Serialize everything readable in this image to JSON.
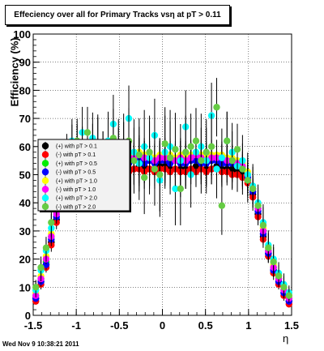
{
  "header": {
    "title": "Effeciency over all for Primary Tracks vsη at pT > 0.11",
    "timestamp": "Wed Nov  9 10:38:21 2011"
  },
  "chart_data": {
    "type": "scatter",
    "xlabel": "η",
    "ylabel": "Efficiency (%)",
    "xlim": [
      -1.5,
      1.5
    ],
    "ylim": [
      0,
      100
    ],
    "x_ticks": [
      "-1.5",
      "-1",
      "-0.5",
      "0",
      "0.5",
      "1",
      "1.5"
    ],
    "y_ticks": [
      "0",
      "10",
      "20",
      "30",
      "40",
      "50",
      "60",
      "70",
      "80",
      "90",
      "100"
    ],
    "grid": true,
    "legend_position": "middle-left",
    "x": [
      -1.47,
      -1.41,
      -1.35,
      -1.29,
      -1.23,
      -1.17,
      -1.11,
      -1.05,
      -0.99,
      -0.93,
      -0.87,
      -0.81,
      -0.75,
      -0.69,
      -0.63,
      -0.57,
      -0.51,
      -0.45,
      -0.39,
      -0.33,
      -0.27,
      -0.21,
      -0.15,
      -0.09,
      -0.03,
      0.03,
      0.09,
      0.15,
      0.21,
      0.27,
      0.33,
      0.39,
      0.45,
      0.51,
      0.57,
      0.63,
      0.69,
      0.75,
      0.81,
      0.87,
      0.93,
      0.99,
      1.05,
      1.11,
      1.17,
      1.23,
      1.29,
      1.35,
      1.41,
      1.47
    ],
    "series": [
      {
        "name": "(+) with pT > 0.1",
        "color": "#000000",
        "values": [
          6,
          12,
          18,
          26,
          34,
          45,
          50,
          52,
          53,
          53,
          53,
          52,
          52,
          52,
          53,
          52,
          52,
          53,
          52,
          52,
          53,
          53,
          52,
          52,
          53,
          53,
          52,
          52,
          52,
          52,
          52,
          53,
          52,
          52,
          52,
          53,
          52,
          52,
          52,
          51,
          50,
          48,
          43,
          36,
          28,
          22,
          16,
          12,
          8,
          5
        ]
      },
      {
        "name": "(-) with pT > 0.1",
        "color": "#ff0000",
        "values": [
          5,
          11,
          17,
          25,
          33,
          44,
          49,
          51,
          52,
          52,
          52,
          51,
          51,
          52,
          52,
          51,
          51,
          52,
          51,
          52,
          52,
          51,
          52,
          51,
          52,
          52,
          51,
          52,
          51,
          51,
          52,
          51,
          52,
          51,
          52,
          52,
          51,
          51,
          50,
          50,
          49,
          47,
          42,
          35,
          27,
          21,
          15,
          11,
          7,
          4
        ]
      },
      {
        "name": "(+) with pT > 0.5",
        "color": "#00ee00",
        "values": [
          7,
          13,
          19,
          28,
          36,
          47,
          53,
          55,
          57,
          56,
          57,
          56,
          56,
          55,
          57,
          56,
          56,
          56,
          55,
          56,
          57,
          56,
          56,
          55,
          56,
          56,
          56,
          55,
          56,
          55,
          56,
          57,
          56,
          55,
          56,
          56,
          56,
          55,
          55,
          54,
          53,
          50,
          45,
          38,
          30,
          23,
          17,
          13,
          9,
          6
        ]
      },
      {
        "name": "(-) with pT > 0.5",
        "color": "#0000ff",
        "values": [
          6,
          12,
          18,
          27,
          35,
          46,
          52,
          54,
          55,
          55,
          55,
          54,
          55,
          54,
          55,
          55,
          54,
          55,
          54,
          55,
          55,
          54,
          55,
          54,
          55,
          55,
          54,
          55,
          54,
          54,
          55,
          55,
          54,
          54,
          55,
          55,
          54,
          54,
          54,
          53,
          52,
          49,
          44,
          37,
          29,
          22,
          16,
          12,
          8,
          5
        ]
      },
      {
        "name": "(+) with pT > 1.0",
        "color": "#ffff00",
        "values": [
          8,
          14,
          21,
          29,
          37,
          48,
          55,
          57,
          58,
          58,
          58,
          57,
          57,
          57,
          58,
          57,
          57,
          57,
          56,
          57,
          58,
          57,
          57,
          56,
          57,
          57,
          57,
          56,
          57,
          56,
          57,
          58,
          57,
          56,
          57,
          57,
          57,
          56,
          56,
          55,
          54,
          51,
          46,
          39,
          31,
          24,
          18,
          14,
          10,
          7
        ]
      },
      {
        "name": "(-) with pT > 1.0",
        "color": "#ff00ff",
        "values": [
          7,
          13,
          20,
          28,
          36,
          47,
          54,
          56,
          57,
          57,
          57,
          56,
          56,
          56,
          57,
          56,
          56,
          56,
          55,
          56,
          57,
          56,
          56,
          55,
          56,
          56,
          56,
          55,
          56,
          55,
          56,
          57,
          56,
          55,
          56,
          56,
          56,
          55,
          55,
          54,
          53,
          50,
          45,
          38,
          30,
          23,
          17,
          13,
          9,
          6
        ]
      },
      {
        "name": "(+) with pT > 2.0",
        "color": "#00ffff",
        "values": [
          9,
          16,
          23,
          31,
          40,
          50,
          58,
          62,
          60,
          65,
          58,
          63,
          60,
          55,
          62,
          68,
          55,
          57,
          70,
          58,
          54,
          60,
          56,
          64,
          48,
          58,
          60,
          45,
          55,
          67,
          50,
          58,
          60,
          55,
          71,
          52,
          56,
          62,
          58,
          53,
          55,
          50,
          46,
          40,
          33,
          25,
          20,
          15,
          11,
          8
        ]
      },
      {
        "name": "(-) with pT > 2.0",
        "color": "#66cc44",
        "values": [
          10,
          17,
          24,
          33,
          41,
          51,
          56,
          60,
          62,
          58,
          65,
          59,
          61,
          55,
          52,
          63,
          58,
          60,
          62,
          55,
          57,
          49,
          58,
          52,
          50,
          61,
          56,
          59,
          45,
          58,
          60,
          62,
          55,
          58,
          60,
          74,
          39,
          62,
          55,
          59,
          52,
          48,
          45,
          39,
          32,
          24,
          19,
          14,
          10,
          7
        ]
      }
    ],
    "errors": [
      2,
      3,
      3,
      4,
      4,
      5,
      5,
      6,
      6,
      7,
      7,
      7,
      8,
      8,
      8,
      8,
      9,
      9,
      9,
      9,
      10,
      10,
      10,
      10,
      10,
      10,
      10,
      10,
      10,
      10,
      9,
      9,
      9,
      9,
      9,
      8,
      8,
      8,
      8,
      7,
      7,
      6,
      6,
      5,
      5,
      4,
      4,
      3,
      3,
      2
    ]
  }
}
